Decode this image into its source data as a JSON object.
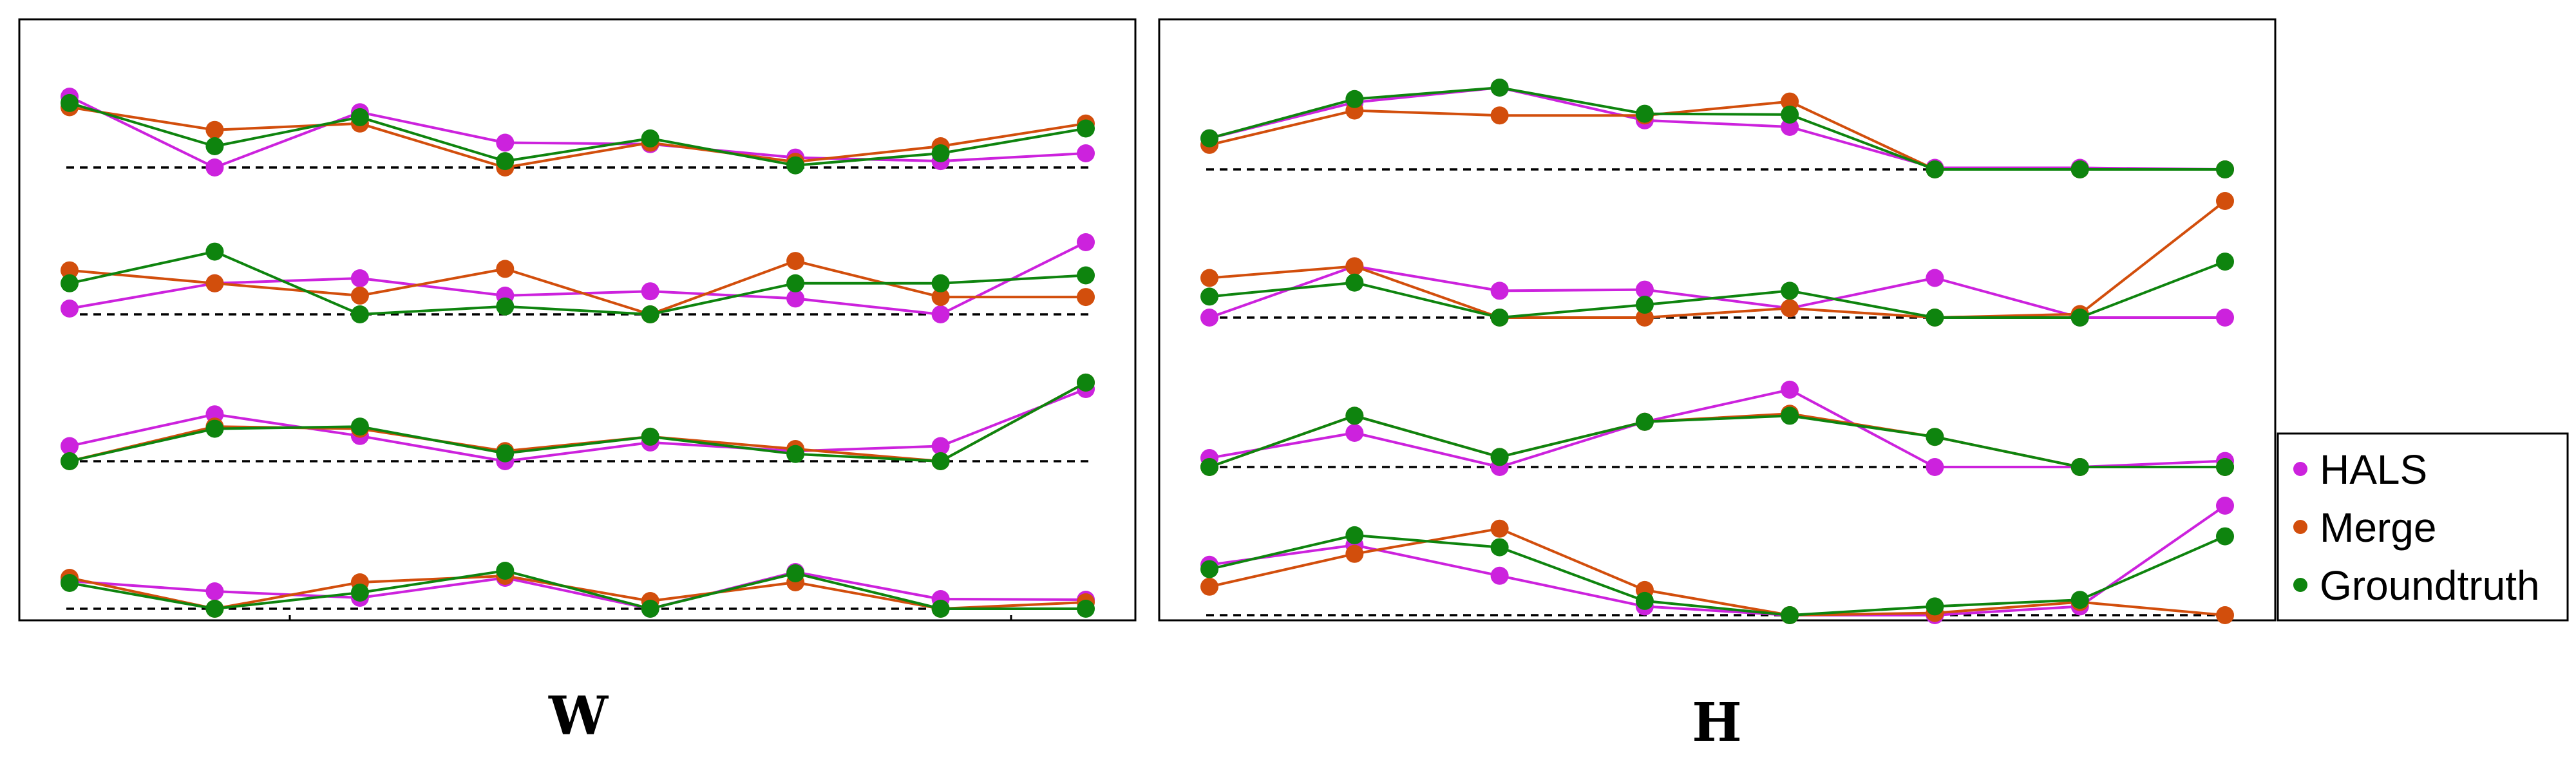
{
  "series_styles": [
    {
      "name": "HALS",
      "color": "#cc22dd"
    },
    {
      "name": "Merge",
      "color": "#d24e0c"
    },
    {
      "name": "Groundtruth",
      "color": "#0e840e"
    }
  ],
  "legend": {
    "placement": "right",
    "items": [
      "HALS",
      "Merge",
      "Groundtruth"
    ]
  },
  "chart_data": [
    {
      "type": "line",
      "title": "W",
      "grid": false,
      "baseline": "dashed",
      "x": [
        1,
        2,
        3,
        4,
        5,
        6,
        7,
        8
      ],
      "ylim": [
        0,
        1
      ],
      "components": [
        {
          "series": [
            {
              "name": "HALS",
              "values": [
                1.0,
                0.0,
                0.78,
                0.35,
                0.33,
                0.14,
                0.09,
                0.2
              ]
            },
            {
              "name": "Merge",
              "values": [
                0.85,
                0.53,
                0.62,
                0.0,
                0.35,
                0.08,
                0.3,
                0.62
              ]
            },
            {
              "name": "Groundtruth",
              "values": [
                0.91,
                0.3,
                0.71,
                0.09,
                0.41,
                0.03,
                0.2,
                0.55
              ]
            }
          ]
        },
        {
          "series": [
            {
              "name": "HALS",
              "values": [
                0.08,
                0.43,
                0.5,
                0.26,
                0.32,
                0.22,
                0.0,
                1.0
              ]
            },
            {
              "name": "Merge",
              "values": [
                0.61,
                0.43,
                0.26,
                0.63,
                0.0,
                0.74,
                0.24,
                0.24
              ]
            },
            {
              "name": "Groundtruth",
              "values": [
                0.43,
                0.87,
                0.0,
                0.11,
                0.0,
                0.43,
                0.43,
                0.54
              ]
            }
          ]
        },
        {
          "series": [
            {
              "name": "HALS",
              "values": [
                0.21,
                0.65,
                0.35,
                0.0,
                0.26,
                0.14,
                0.21,
                1.0
              ]
            },
            {
              "name": "Merge",
              "values": [
                0.0,
                0.48,
                0.45,
                0.14,
                0.34,
                0.17,
                0.0,
                1.09
              ]
            },
            {
              "name": "Groundtruth",
              "values": [
                0.0,
                0.45,
                0.48,
                0.11,
                0.34,
                0.1,
                0.0,
                1.09
              ]
            }
          ]
        },
        {
          "series": [
            {
              "name": "HALS",
              "values": [
                0.43,
                0.27,
                0.17,
                0.48,
                0.0,
                0.57,
                0.15,
                0.14
              ]
            },
            {
              "name": "Merge",
              "values": [
                0.48,
                0.0,
                0.41,
                0.51,
                0.12,
                0.41,
                0.0,
                0.1
              ]
            },
            {
              "name": "Groundtruth",
              "values": [
                0.4,
                0.0,
                0.25,
                0.59,
                0.0,
                0.55,
                0.0,
                0.0
              ]
            }
          ]
        }
      ]
    },
    {
      "type": "line",
      "title": "H",
      "grid": false,
      "baseline": "dashed",
      "x": [
        1,
        2,
        3,
        4,
        5,
        6,
        7,
        8
      ],
      "ylim": [
        0,
        1
      ],
      "components": [
        {
          "series": [
            {
              "name": "HALS",
              "values": [
                0.38,
                0.82,
                1.0,
                0.6,
                0.52,
                0.02,
                0.02,
                0.0
              ]
            },
            {
              "name": "Merge",
              "values": [
                0.3,
                0.72,
                0.66,
                0.66,
                0.83,
                0.0,
                0.0,
                0.0
              ]
            },
            {
              "name": "Groundtruth",
              "values": [
                0.38,
                0.86,
                1.0,
                0.68,
                0.67,
                0.0,
                0.0,
                0.0
              ]
            }
          ]
        },
        {
          "series": [
            {
              "name": "HALS",
              "values": [
                0.0,
                0.44,
                0.23,
                0.24,
                0.08,
                0.34,
                0.0,
                0.0
              ]
            },
            {
              "name": "Merge",
              "values": [
                0.34,
                0.44,
                0.0,
                0.0,
                0.08,
                0.0,
                0.03,
                1.0
              ]
            },
            {
              "name": "Groundtruth",
              "values": [
                0.18,
                0.3,
                0.0,
                0.11,
                0.23,
                0.0,
                0.0,
                0.48
              ]
            }
          ]
        },
        {
          "series": [
            {
              "name": "HALS",
              "values": [
                0.09,
                0.34,
                0.0,
                0.45,
                0.77,
                0.0,
                0.0,
                0.06
              ]
            },
            {
              "name": "Merge",
              "values": [
                0.0,
                0.51,
                0.1,
                0.45,
                0.53,
                0.3,
                0.0,
                0.0
              ]
            },
            {
              "name": "Groundtruth",
              "values": [
                0.0,
                0.51,
                0.1,
                0.45,
                0.51,
                0.3,
                0.0,
                0.0
              ]
            }
          ]
        },
        {
          "series": [
            {
              "name": "HALS",
              "values": [
                0.46,
                0.64,
                0.36,
                0.08,
                0.0,
                0.0,
                0.08,
                1.0
              ]
            },
            {
              "name": "Merge",
              "values": [
                0.26,
                0.56,
                0.79,
                0.23,
                0.0,
                0.02,
                0.12,
                0.0
              ]
            },
            {
              "name": "Groundtruth",
              "values": [
                0.42,
                0.73,
                0.62,
                0.13,
                0.0,
                0.08,
                0.14,
                0.72
              ]
            }
          ]
        }
      ]
    }
  ]
}
